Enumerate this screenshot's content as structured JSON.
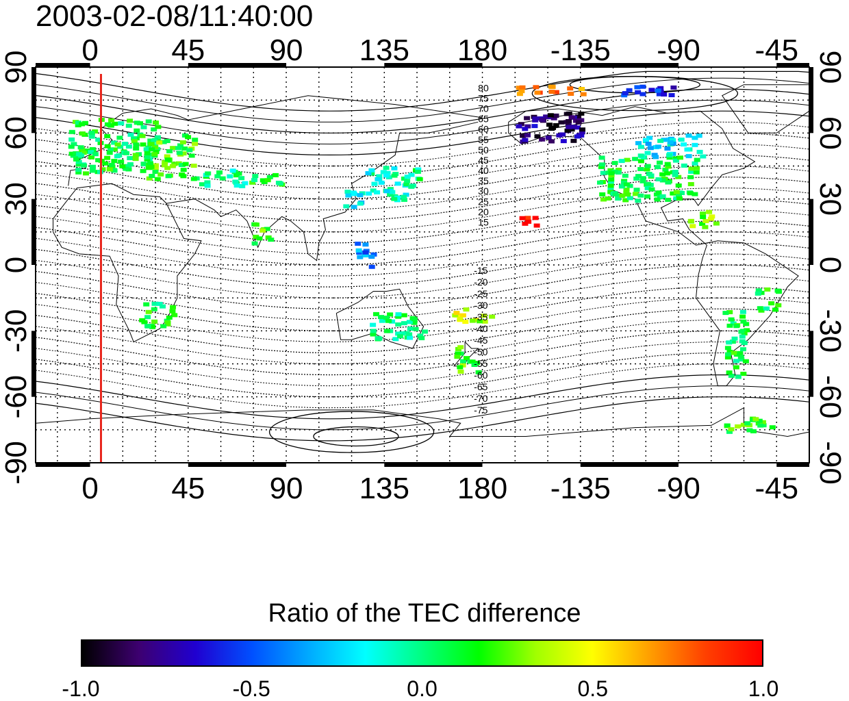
{
  "title": "2003-02-08/11:40:00",
  "map": {
    "lon_start": -25,
    "lon_end": 330,
    "lat_min": -90,
    "lat_max": 90,
    "lon_ticks": [
      {
        "value": 0,
        "label": "0"
      },
      {
        "value": 45,
        "label": "45"
      },
      {
        "value": 90,
        "label": "90"
      },
      {
        "value": 135,
        "label": "135"
      },
      {
        "value": 180,
        "label": "180"
      },
      {
        "value": 225,
        "label": "-135"
      },
      {
        "value": 270,
        "label": "-90"
      },
      {
        "value": 315,
        "label": "-45"
      }
    ],
    "lat_ticks": [
      {
        "value": 90,
        "label": "90"
      },
      {
        "value": 60,
        "label": "60"
      },
      {
        "value": 30,
        "label": "30"
      },
      {
        "value": 0,
        "label": "0"
      },
      {
        "value": -30,
        "label": "-30"
      },
      {
        "value": -60,
        "label": "-60"
      },
      {
        "value": -90,
        "label": "-90"
      }
    ],
    "marker_longitude": 5,
    "marker_color": "#e8261d",
    "contour_labels_north": [
      "80",
      "75",
      "70",
      "65",
      "60",
      "55",
      "50",
      "45",
      "40",
      "35",
      "30",
      "25",
      "20",
      "15"
    ],
    "contour_labels_south": [
      "-15",
      "-20",
      "-25",
      "-30",
      "-35",
      "-40",
      "-45",
      "-50",
      "-55",
      "-60",
      "-65",
      "-70",
      "-75"
    ],
    "contour_labels_longitude": 178
  },
  "colorbar": {
    "title": "Ratio of the TEC difference",
    "min": -1.0,
    "max": 1.0,
    "ticks": [
      "-1.0",
      "-0.5",
      "0.0",
      "0.5",
      "1.0"
    ],
    "colors": [
      "#000000",
      "#3d0070",
      "#2000d0",
      "#0050ff",
      "#00aaff",
      "#00ffff",
      "#00ff80",
      "#00ff00",
      "#a0ff00",
      "#ffff00",
      "#ffa000",
      "#ff4000",
      "#ff0000"
    ]
  },
  "tec_patches": [
    {
      "lon": 10,
      "lat": 55,
      "w": 40,
      "h": 25,
      "value": 0.1
    },
    {
      "lon": 35,
      "lat": 50,
      "w": 25,
      "h": 20,
      "value": 0.2
    },
    {
      "lon": 60,
      "lat": 40,
      "w": 20,
      "h": 8,
      "value": 0.0
    },
    {
      "lon": 80,
      "lat": 40,
      "w": 14,
      "h": 6,
      "value": 0.1
    },
    {
      "lon": 135,
      "lat": 38,
      "w": 18,
      "h": 16,
      "value": -0.1
    },
    {
      "lon": 148,
      "lat": 40,
      "w": 8,
      "h": 10,
      "value": 0.0
    },
    {
      "lon": 120,
      "lat": 30,
      "w": 8,
      "h": 10,
      "value": -0.2
    },
    {
      "lon": 210,
      "lat": 63,
      "w": 30,
      "h": 12,
      "value": -0.8
    },
    {
      "lon": 218,
      "lat": 66,
      "w": 18,
      "h": 8,
      "value": -0.9
    },
    {
      "lon": 255,
      "lat": 40,
      "w": 45,
      "h": 20,
      "value": 0.1
    },
    {
      "lon": 265,
      "lat": 55,
      "w": 30,
      "h": 10,
      "value": -0.2
    },
    {
      "lon": 280,
      "lat": 22,
      "w": 12,
      "h": 8,
      "value": 0.3
    },
    {
      "lon": 200,
      "lat": 20,
      "w": 8,
      "h": 6,
      "value": 1.0
    },
    {
      "lon": 30,
      "lat": -22,
      "w": 15,
      "h": 12,
      "value": 0.1
    },
    {
      "lon": 140,
      "lat": -27,
      "w": 25,
      "h": 12,
      "value": 0.0
    },
    {
      "lon": 175,
      "lat": -22,
      "w": 18,
      "h": 6,
      "value": 0.4
    },
    {
      "lon": 172,
      "lat": -42,
      "w": 10,
      "h": 12,
      "value": 0.2
    },
    {
      "lon": 295,
      "lat": -35,
      "w": 10,
      "h": 30,
      "value": 0.1
    },
    {
      "lon": 310,
      "lat": -15,
      "w": 10,
      "h": 10,
      "value": 0.1
    },
    {
      "lon": 300,
      "lat": -72,
      "w": 25,
      "h": 6,
      "value": 0.2
    },
    {
      "lon": 210,
      "lat": 80,
      "w": 30,
      "h": 4,
      "value": 0.7
    },
    {
      "lon": 255,
      "lat": 80,
      "w": 25,
      "h": 5,
      "value": -0.6
    },
    {
      "lon": 125,
      "lat": 5,
      "w": 8,
      "h": 12,
      "value": -0.4
    },
    {
      "lon": 78,
      "lat": 15,
      "w": 8,
      "h": 10,
      "value": 0.2
    }
  ]
}
